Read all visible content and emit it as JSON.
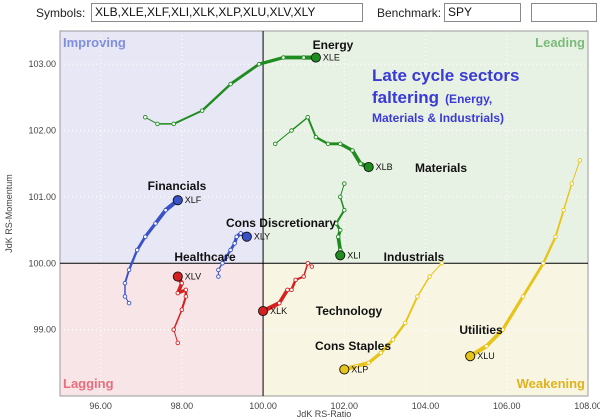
{
  "toolbar": {
    "symbols_label": "Symbols:",
    "symbols_value": "XLB,XLE,XLF,XLI,XLK,XLP,XLU,XLV,XLY",
    "benchmark_label": "Benchmark:",
    "benchmark_value": "SPY",
    "extra_value": ""
  },
  "colors": {
    "improving": "#e7e7f6",
    "leading": "#e8f2e4",
    "weakening": "#f8f6e2",
    "lagging": "#f8e5e7",
    "improving_label": "#7f8fdc",
    "leading_label": "#7cba7c",
    "weakening_label": "#e0b21c",
    "lagging_label": "#e86e7e",
    "annotation": "#3a3ad6"
  },
  "chart_data": {
    "type": "scatter",
    "subtype": "relative-rotation-graph",
    "xlabel": "JdK RS-Ratio",
    "ylabel": "JdK RS-Momentum",
    "xlim": [
      95.0,
      108.0
    ],
    "ylim": [
      98.0,
      103.5
    ],
    "xticks": [
      96,
      98,
      100,
      102,
      104,
      106,
      108
    ],
    "yticks": [
      99,
      100,
      101,
      102,
      103
    ],
    "tick_format": "0.00",
    "center": [
      100,
      100
    ],
    "quadrants": [
      {
        "name": "Improving",
        "position": "top-left",
        "color": "improving"
      },
      {
        "name": "Leading",
        "position": "top-right",
        "color": "leading"
      },
      {
        "name": "Weakening",
        "position": "bottom-right",
        "color": "weakening"
      },
      {
        "name": "Lagging",
        "position": "bottom-left",
        "color": "lagging"
      }
    ],
    "annotation": [
      "Late cycle sectors",
      "faltering",
      "(Energy,",
      "Materials & Industrials)"
    ],
    "series": [
      {
        "ticker": "XLE",
        "name": "Energy",
        "color": "#1e8c1e",
        "x": [
          97.1,
          97.4,
          97.8,
          98.5,
          99.2,
          99.9,
          100.5,
          101.0,
          101.3
        ],
        "y": [
          102.2,
          102.1,
          102.1,
          102.3,
          102.7,
          103.0,
          103.1,
          103.1,
          103.1
        ]
      },
      {
        "ticker": "XLB",
        "name": "Materials",
        "color": "#1e8c1e",
        "x": [
          100.3,
          100.7,
          101.1,
          101.3,
          101.6,
          101.9,
          102.2,
          102.4,
          102.6
        ],
        "y": [
          101.8,
          102.0,
          102.2,
          101.9,
          101.8,
          101.8,
          101.7,
          101.5,
          101.45
        ]
      },
      {
        "ticker": "XLI",
        "name": "Industrials",
        "color": "#1e8c1e",
        "x": [
          102.0,
          101.9,
          102.0,
          101.8,
          101.9,
          101.85,
          101.9,
          101.9
        ],
        "y": [
          101.2,
          101.0,
          100.8,
          100.6,
          100.5,
          100.4,
          100.2,
          100.12
        ]
      },
      {
        "ticker": "XLF",
        "name": "Financials",
        "color": "#3a52c8",
        "x": [
          96.7,
          96.6,
          96.6,
          96.7,
          96.9,
          97.1,
          97.35,
          97.6,
          97.9
        ],
        "y": [
          99.4,
          99.5,
          99.7,
          99.9,
          100.2,
          100.4,
          100.6,
          100.8,
          100.95
        ]
      },
      {
        "ticker": "XLY",
        "name": "Cons Discretionary",
        "color": "#3a52c8",
        "x": [
          98.9,
          98.9,
          99.0,
          99.1,
          99.2,
          99.3,
          99.35,
          99.45,
          99.6
        ],
        "y": [
          99.8,
          99.9,
          100.0,
          100.1,
          100.2,
          100.3,
          100.4,
          100.45,
          100.4
        ]
      },
      {
        "ticker": "XLV",
        "name": "Healthcare",
        "color": "#d42020",
        "x": [
          97.9,
          97.8,
          98.0,
          98.1,
          98.1,
          97.9,
          98.0,
          97.9
        ],
        "y": [
          98.8,
          99.0,
          99.3,
          99.5,
          99.6,
          99.55,
          99.7,
          99.8
        ]
      },
      {
        "ticker": "XLK",
        "name": "Technology",
        "color": "#d42020",
        "x": [
          101.2,
          101.1,
          101.0,
          100.8,
          100.7,
          100.6,
          100.4,
          100.0
        ],
        "y": [
          99.95,
          100.0,
          99.8,
          99.75,
          99.6,
          99.6,
          99.4,
          99.28
        ]
      },
      {
        "ticker": "XLP",
        "name": "Cons Staples",
        "color": "#e8c41a",
        "x": [
          104.4,
          104.1,
          103.8,
          103.5,
          103.2,
          102.9,
          102.6,
          102.3,
          102.0
        ],
        "y": [
          100.0,
          99.8,
          99.5,
          99.1,
          98.85,
          98.65,
          98.5,
          98.45,
          98.4
        ]
      },
      {
        "ticker": "XLU",
        "name": "Utilities",
        "color": "#e8c41a",
        "x": [
          107.8,
          107.6,
          107.4,
          107.2,
          106.9,
          106.4,
          105.9,
          105.5,
          105.1
        ],
        "y": [
          101.55,
          101.2,
          100.8,
          100.4,
          100.0,
          99.5,
          99.0,
          98.75,
          98.6
        ]
      }
    ]
  }
}
